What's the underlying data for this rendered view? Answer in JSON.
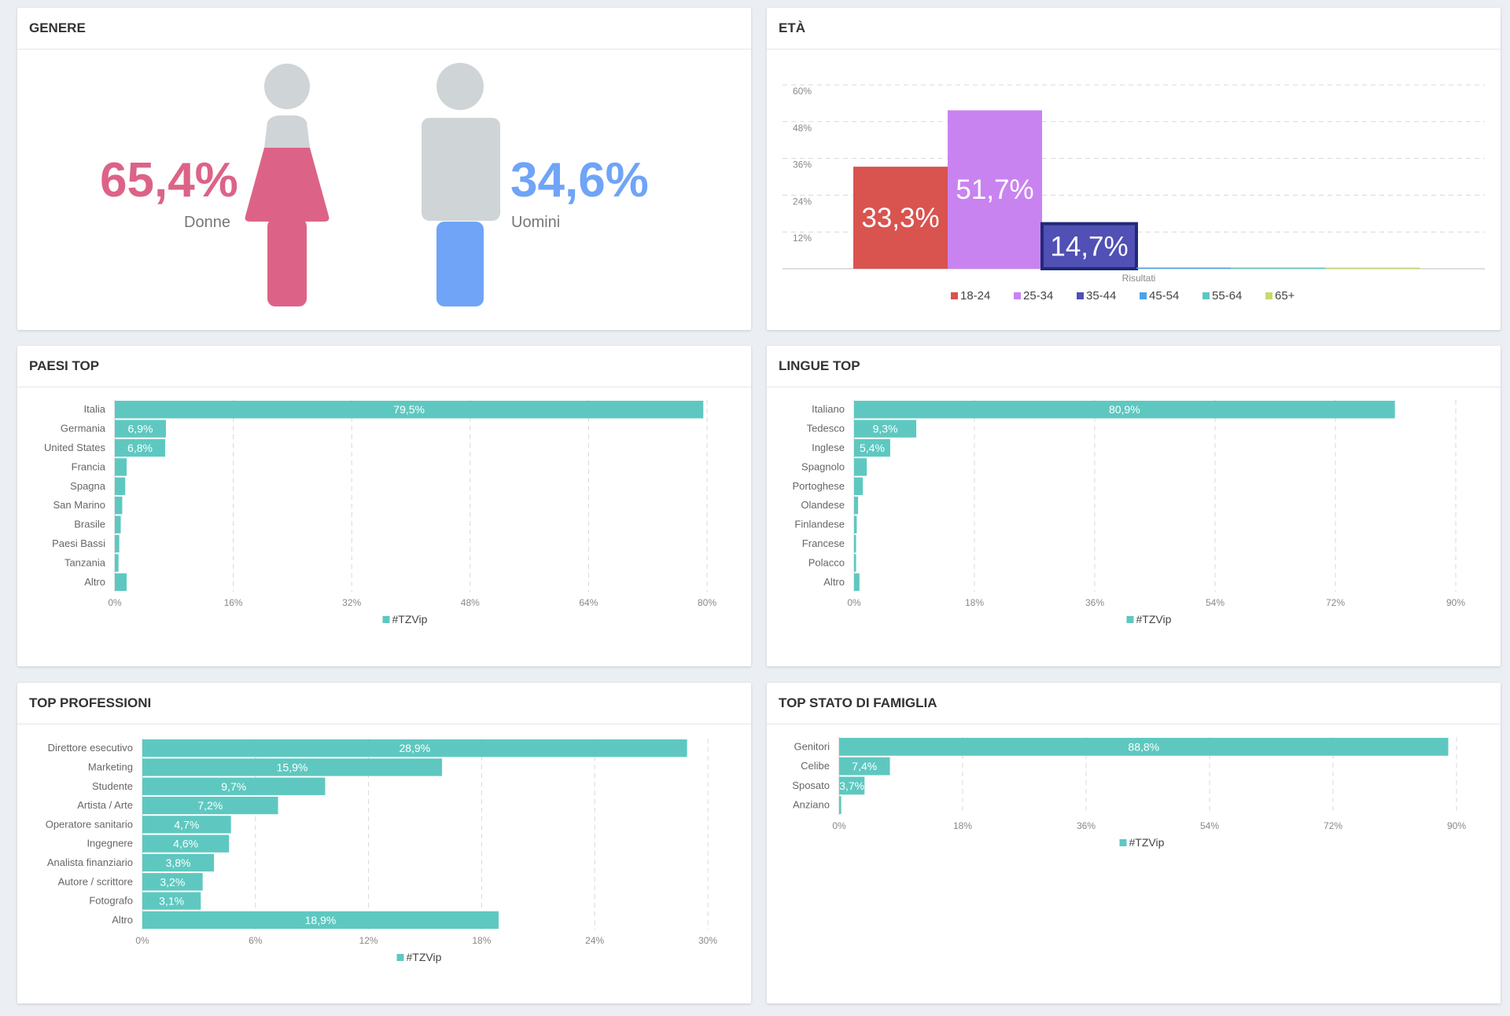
{
  "panels": {
    "genere": "GENERE",
    "eta": "ETÀ",
    "paesi": "PAESI TOP",
    "lingue": "LINGUE TOP",
    "professioni": "TOP PROFESSIONI",
    "famiglia": "TOP STATO DI FAMIGLIA"
  },
  "gender": {
    "female_value": "65,4%",
    "female_label": "Donne",
    "male_value": "34,6%",
    "male_label": "Uomini",
    "female_color": "#dc6387",
    "male_color": "#6fa4f7",
    "icon_gray": "#cfd4d7"
  },
  "bar_color": "#5ec8c0",
  "chart_data": [
    {
      "id": "eta",
      "type": "bar",
      "title": "ETÀ",
      "xlabel": "Risultati",
      "ylim": [
        0,
        60
      ],
      "yticks": [
        "12%",
        "24%",
        "36%",
        "48%",
        "60%"
      ],
      "ytick_values": [
        12,
        24,
        36,
        48,
        60
      ],
      "series": [
        {
          "name": "18-24",
          "value": 33.3,
          "label": "33,3%",
          "color": "#d9534f"
        },
        {
          "name": "25-34",
          "value": 51.7,
          "label": "51,7%",
          "color": "#c983f0"
        },
        {
          "name": "35-44",
          "value": 14.7,
          "label": "14,7%",
          "color": "#5050b5"
        },
        {
          "name": "45-54",
          "value": 0.2,
          "label": "",
          "color": "#4ca3e8"
        },
        {
          "name": "55-64",
          "value": 0.2,
          "label": "",
          "color": "#5ec8c0"
        },
        {
          "name": "65+",
          "value": 0.2,
          "label": "",
          "color": "#c5dc6a"
        }
      ]
    },
    {
      "id": "paesi",
      "type": "bar",
      "orientation": "horizontal",
      "title": "PAESI TOP",
      "legend": "#TZVip",
      "xlim": [
        0,
        80
      ],
      "xticks": [
        "0%",
        "16%",
        "32%",
        "48%",
        "64%",
        "80%"
      ],
      "xtick_values": [
        0,
        16,
        32,
        48,
        64,
        80
      ],
      "categories": [
        "Italia",
        "Germania",
        "United States",
        "Francia",
        "Spagna",
        "San Marino",
        "Brasile",
        "Paesi Bassi",
        "Tanzania",
        "Altro"
      ],
      "values": [
        79.5,
        6.9,
        6.8,
        1.6,
        1.4,
        1.0,
        0.8,
        0.6,
        0.5,
        1.6
      ],
      "labels": [
        "79,5%",
        "6,9%",
        "6,8%",
        "",
        "",
        "",
        "",
        "",
        "",
        ""
      ]
    },
    {
      "id": "lingue",
      "type": "bar",
      "orientation": "horizontal",
      "title": "LINGUE TOP",
      "legend": "#TZVip",
      "xlim": [
        0,
        90
      ],
      "xticks": [
        "0%",
        "18%",
        "36%",
        "54%",
        "72%",
        "90%"
      ],
      "xtick_values": [
        0,
        18,
        36,
        54,
        72,
        90
      ],
      "categories": [
        "Italiano",
        "Tedesco",
        "Inglese",
        "Spagnolo",
        "Portoghese",
        "Olandese",
        "Finlandese",
        "Francese",
        "Polacco",
        "Altro"
      ],
      "values": [
        80.9,
        9.3,
        5.4,
        1.9,
        1.3,
        0.6,
        0.4,
        0.3,
        0.3,
        0.8
      ],
      "labels": [
        "80,9%",
        "9,3%",
        "5,4%",
        "",
        "",
        "",
        "",
        "",
        "",
        ""
      ]
    },
    {
      "id": "professioni",
      "type": "bar",
      "orientation": "horizontal",
      "title": "TOP PROFESSIONI",
      "legend": "#TZVip",
      "xlim": [
        0,
        30
      ],
      "xticks": [
        "0%",
        "6%",
        "12%",
        "18%",
        "24%",
        "30%"
      ],
      "xtick_values": [
        0,
        6,
        12,
        18,
        24,
        30
      ],
      "categories": [
        "Direttore esecutivo",
        "Marketing",
        "Studente",
        "Artista / Arte",
        "Operatore sanitario",
        "Ingegnere",
        "Analista finanziario",
        "Autore / scrittore",
        "Fotografo",
        "Altro"
      ],
      "values": [
        28.9,
        15.9,
        9.7,
        7.2,
        4.7,
        4.6,
        3.8,
        3.2,
        3.1,
        18.9
      ],
      "labels": [
        "28,9%",
        "15,9%",
        "9,7%",
        "7,2%",
        "4,7%",
        "4,6%",
        "3,8%",
        "3,2%",
        "3,1%",
        "18,9%"
      ]
    },
    {
      "id": "famiglia",
      "type": "bar",
      "orientation": "horizontal",
      "title": "TOP STATO DI FAMIGLIA",
      "legend": "#TZVip",
      "xlim": [
        0,
        90
      ],
      "xticks": [
        "0%",
        "18%",
        "36%",
        "54%",
        "72%",
        "90%"
      ],
      "xtick_values": [
        0,
        18,
        36,
        54,
        72,
        90
      ],
      "categories": [
        "Genitori",
        "Celibe",
        "Sposato",
        "Anziano"
      ],
      "values": [
        88.8,
        7.4,
        3.7,
        0.3
      ],
      "labels": [
        "88,8%",
        "7,4%",
        "3,7%",
        ""
      ]
    }
  ]
}
